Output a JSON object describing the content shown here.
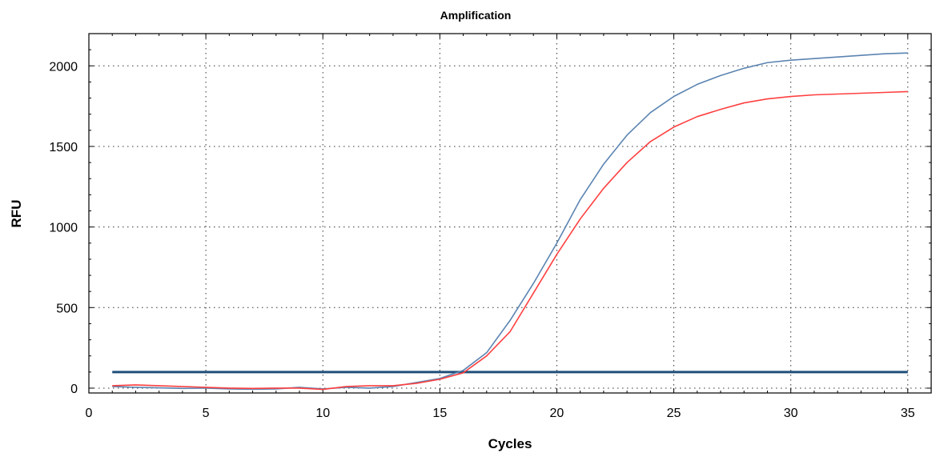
{
  "chart_data": {
    "type": "line",
    "title": "Amplification",
    "xlabel": "Cycles",
    "ylabel": "RFU",
    "xlim": [
      0,
      36
    ],
    "ylim": [
      -30,
      2200
    ],
    "xticks": [
      0,
      5,
      10,
      15,
      20,
      25,
      30,
      35
    ],
    "yticks": [
      0,
      500,
      1000,
      1500,
      2000
    ],
    "grid": true,
    "legend": "none",
    "threshold": {
      "value": 100,
      "color": "#1f4e79"
    },
    "x": [
      1,
      2,
      3,
      4,
      5,
      6,
      7,
      8,
      9,
      10,
      11,
      12,
      13,
      14,
      15,
      16,
      17,
      18,
      19,
      20,
      21,
      22,
      23,
      24,
      25,
      26,
      27,
      28,
      29,
      30,
      31,
      32,
      33,
      34,
      35
    ],
    "series": [
      {
        "color": "#5b84b1",
        "values": [
          10,
          5,
          2,
          -2,
          0,
          -5,
          -7,
          -5,
          5,
          -5,
          5,
          0,
          10,
          35,
          60,
          110,
          220,
          420,
          650,
          900,
          1170,
          1390,
          1570,
          1710,
          1810,
          1885,
          1940,
          1985,
          2020,
          2035,
          2045,
          2055,
          2065,
          2075,
          2080
        ]
      },
      {
        "color": "#ff4040",
        "values": [
          15,
          20,
          15,
          10,
          5,
          0,
          -2,
          0,
          0,
          -8,
          10,
          15,
          15,
          30,
          55,
          95,
          200,
          350,
          590,
          830,
          1050,
          1240,
          1400,
          1530,
          1620,
          1685,
          1730,
          1770,
          1795,
          1810,
          1820,
          1825,
          1830,
          1835,
          1840
        ]
      }
    ]
  }
}
